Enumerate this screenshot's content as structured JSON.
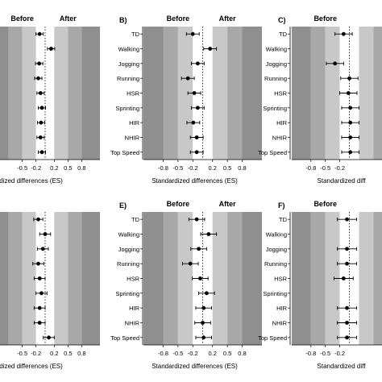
{
  "chart_data": [
    {
      "type": "scatter",
      "panel_label": "",
      "before_label": "Before",
      "after_label": "After",
      "categories": [],
      "x_ticks": [
        "-0.5",
        "-0.2",
        "0.2",
        "0.5",
        "0.8"
      ],
      "xlabel": "ndardized differences (ES)",
      "points": [
        {
          "es": -0.12,
          "lo": -0.2,
          "hi": -0.04
        },
        {
          "es": 0.13,
          "lo": 0.05,
          "hi": 0.21
        },
        {
          "es": -0.13,
          "lo": -0.21,
          "hi": -0.05
        },
        {
          "es": -0.15,
          "lo": -0.23,
          "hi": -0.07
        },
        {
          "es": -0.1,
          "lo": -0.18,
          "hi": -0.02
        },
        {
          "es": -0.07,
          "lo": -0.15,
          "hi": 0.01
        },
        {
          "es": -0.09,
          "lo": -0.17,
          "hi": -0.01
        },
        {
          "es": -0.1,
          "lo": -0.18,
          "hi": -0.02
        },
        {
          "es": -0.07,
          "lo": -0.15,
          "hi": 0.01
        }
      ]
    },
    {
      "type": "scatter",
      "panel_label": "B)",
      "before_label": "Before",
      "after_label": "After",
      "categories": [
        "TD",
        "Walking",
        "Jogging",
        "Running",
        "HSR",
        "Sprinting",
        "HIR",
        "NHIR",
        "Top Speed"
      ],
      "x_ticks": [
        "-0.8",
        "-0.5",
        "-0.2",
        "0.2",
        "0.5",
        "0.8"
      ],
      "xlabel": "Standardized differences (ES)",
      "points": [
        {
          "es": -0.2,
          "lo": -0.33,
          "hi": -0.07
        },
        {
          "es": 0.15,
          "lo": 0.02,
          "hi": 0.28
        },
        {
          "es": -0.1,
          "lo": -0.23,
          "hi": 0.03
        },
        {
          "es": -0.3,
          "lo": -0.43,
          "hi": -0.17
        },
        {
          "es": -0.17,
          "lo": -0.3,
          "hi": -0.04
        },
        {
          "es": -0.1,
          "lo": -0.23,
          "hi": 0.03
        },
        {
          "es": -0.19,
          "lo": -0.32,
          "hi": -0.06
        },
        {
          "es": -0.12,
          "lo": -0.25,
          "hi": 0.01
        },
        {
          "es": -0.12,
          "lo": -0.25,
          "hi": 0.01
        }
      ]
    },
    {
      "type": "scatter",
      "panel_label": "C)",
      "before_label": "Before",
      "after_label": "",
      "categories": [
        "TD",
        "Walking",
        "Jogging",
        "Running",
        "HSR",
        "Sprinting",
        "HIR",
        "NHIR",
        "Top Speed"
      ],
      "x_ticks": [
        "-0.8",
        "-0.5",
        "-0.2"
      ],
      "xlabel": "Standardized diff",
      "points": [
        {
          "es": -0.12,
          "lo": -0.3,
          "hi": 0.06
        },
        null,
        {
          "es": -0.3,
          "lo": -0.48,
          "hi": -0.12
        },
        {
          "es": 0.0,
          "lo": -0.18,
          "hi": 0.18
        },
        {
          "es": -0.02,
          "lo": -0.2,
          "hi": 0.16
        },
        {
          "es": 0.02,
          "lo": -0.16,
          "hi": 0.2
        },
        {
          "es": 0.02,
          "lo": -0.16,
          "hi": 0.2
        },
        {
          "es": 0.02,
          "lo": -0.16,
          "hi": 0.2
        },
        {
          "es": 0.02,
          "lo": -0.16,
          "hi": 0.2
        }
      ]
    },
    {
      "type": "scatter",
      "panel_label": "",
      "before_label": "",
      "after_label": "",
      "categories": [],
      "x_ticks": [
        "-0.5",
        "-0.2",
        "0.2",
        "0.5",
        "0.8"
      ],
      "xlabel": "ndardized differences (ES)",
      "points": [
        {
          "es": -0.15,
          "lo": -0.25,
          "hi": -0.05
        },
        {
          "es": 0.0,
          "lo": -0.12,
          "hi": 0.12
        },
        {
          "es": -0.05,
          "lo": -0.17,
          "hi": 0.07
        },
        {
          "es": -0.15,
          "lo": -0.27,
          "hi": -0.03
        },
        {
          "es": -0.12,
          "lo": -0.24,
          "hi": 0.0
        },
        {
          "es": -0.08,
          "lo": -0.2,
          "hi": 0.04
        },
        {
          "es": -0.12,
          "lo": -0.24,
          "hi": 0.0
        },
        {
          "es": -0.12,
          "lo": -0.24,
          "hi": 0.0
        },
        {
          "es": 0.08,
          "lo": -0.04,
          "hi": 0.2
        }
      ]
    },
    {
      "type": "scatter",
      "panel_label": "E)",
      "before_label": "Before",
      "after_label": "After",
      "categories": [
        "TD",
        "Walking",
        "Jogging",
        "Running",
        "HSR",
        "Sprinting",
        "HIR",
        "NHIR",
        "Top Speed"
      ],
      "x_ticks": [
        "-0.8",
        "-0.5",
        "-0.2",
        "0.2",
        "0.5",
        "0.8"
      ],
      "xlabel": "Standardized differences (ES)",
      "points": [
        {
          "es": -0.12,
          "lo": -0.28,
          "hi": 0.04
        },
        {
          "es": 0.12,
          "lo": -0.04,
          "hi": 0.28
        },
        {
          "es": -0.08,
          "lo": -0.24,
          "hi": 0.08
        },
        {
          "es": -0.25,
          "lo": -0.41,
          "hi": -0.09
        },
        {
          "es": -0.05,
          "lo": -0.21,
          "hi": 0.11
        },
        {
          "es": 0.08,
          "lo": -0.08,
          "hi": 0.24
        },
        {
          "es": 0.02,
          "lo": -0.14,
          "hi": 0.18
        },
        {
          "es": 0.0,
          "lo": -0.16,
          "hi": 0.16
        },
        {
          "es": 0.02,
          "lo": -0.14,
          "hi": 0.18
        }
      ]
    },
    {
      "type": "scatter",
      "panel_label": "F)",
      "before_label": "Before",
      "after_label": "",
      "categories": [
        "TD",
        "Walking",
        "Jogging",
        "Running",
        "HSR",
        "Sprinting",
        "HIR",
        "NHIR",
        "Top Speed"
      ],
      "x_ticks": [
        "-0.8",
        "-0.5",
        "-0.2"
      ],
      "xlabel": "Standardized diff",
      "points": [
        {
          "es": -0.05,
          "lo": -0.25,
          "hi": 0.15
        },
        null,
        {
          "es": -0.05,
          "lo": -0.25,
          "hi": 0.15
        },
        {
          "es": -0.05,
          "lo": -0.25,
          "hi": 0.15
        },
        {
          "es": -0.12,
          "lo": -0.32,
          "hi": 0.08
        },
        null,
        {
          "es": -0.05,
          "lo": -0.25,
          "hi": 0.15
        },
        {
          "es": -0.05,
          "lo": -0.25,
          "hi": 0.15
        },
        {
          "es": -0.05,
          "lo": -0.25,
          "hi": 0.15
        }
      ]
    }
  ]
}
